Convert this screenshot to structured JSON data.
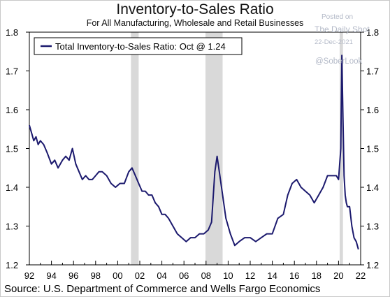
{
  "title": "Inventory-to-Sales Ratio",
  "subtitle": "For All Manufacturing, Wholesale and Retail Businesses",
  "watermark": {
    "line1": "Posted on",
    "line2": "The Daily Shot",
    "line3": "22-Dec-2021",
    "line4": "@SoberLook"
  },
  "source": "Source: U.S. Department of Commerce and Wells Fargo Economics",
  "colors": {
    "line": "#1c1a6e",
    "recession": "#d9d9d9",
    "axis": "#000000"
  },
  "chart_data": {
    "type": "line",
    "title": "Inventory-to-Sales Ratio",
    "subtitle": "For All Manufacturing, Wholesale and Retail Businesses",
    "xlabel": "",
    "ylabel": "",
    "xlim": [
      1992,
      2022
    ],
    "ylim": [
      1.2,
      1.8
    ],
    "x_ticks": [
      1992,
      1994,
      1996,
      1998,
      2000,
      2002,
      2004,
      2006,
      2008,
      2010,
      2012,
      2014,
      2016,
      2018,
      2020,
      2022
    ],
    "x_tick_labels": [
      "92",
      "94",
      "96",
      "98",
      "00",
      "02",
      "04",
      "06",
      "08",
      "10",
      "12",
      "14",
      "16",
      "18",
      "20",
      "22"
    ],
    "y_ticks": [
      1.2,
      1.3,
      1.4,
      1.5,
      1.6,
      1.7,
      1.8
    ],
    "y_tick_labels": [
      "1.2",
      "1.3",
      "1.4",
      "1.5",
      "1.6",
      "1.7",
      "1.8"
    ],
    "grid": false,
    "legend_position": "top-left",
    "recessions": [
      [
        2001.2,
        2001.9
      ],
      [
        2007.95,
        2009.5
      ],
      [
        2020.1,
        2020.4
      ]
    ],
    "series": [
      {
        "name": "Total Inventory-to-Sales Ratio: Oct @ 1.24",
        "x": [
          1992.0,
          1992.2,
          1992.4,
          1992.6,
          1992.8,
          1993.0,
          1993.3,
          1993.6,
          1994.0,
          1994.3,
          1994.6,
          1995.0,
          1995.3,
          1995.6,
          1995.9,
          1996.2,
          1996.5,
          1996.8,
          1997.1,
          1997.4,
          1997.7,
          1998.0,
          1998.3,
          1998.6,
          1999.0,
          1999.4,
          1999.8,
          2000.2,
          2000.6,
          2001.0,
          2001.3,
          2001.6,
          2001.9,
          2002.2,
          2002.5,
          2002.8,
          2003.1,
          2003.4,
          2003.7,
          2004.0,
          2004.3,
          2004.6,
          2005.0,
          2005.4,
          2005.8,
          2006.2,
          2006.6,
          2007.0,
          2007.4,
          2007.8,
          2008.2,
          2008.5,
          2008.8,
          2009.0,
          2009.2,
          2009.5,
          2009.8,
          2010.2,
          2010.6,
          2011.0,
          2011.5,
          2012.0,
          2012.5,
          2013.0,
          2013.5,
          2014.0,
          2014.5,
          2015.0,
          2015.4,
          2015.8,
          2016.2,
          2016.6,
          2017.0,
          2017.4,
          2017.8,
          2018.2,
          2018.6,
          2019.0,
          2019.4,
          2019.8,
          2020.0,
          2020.2,
          2020.3,
          2020.4,
          2020.5,
          2020.6,
          2020.7,
          2020.8,
          2020.9,
          2021.0,
          2021.2,
          2021.4,
          2021.6,
          2021.8
        ],
        "values": [
          1.56,
          1.54,
          1.52,
          1.53,
          1.51,
          1.52,
          1.51,
          1.49,
          1.46,
          1.47,
          1.45,
          1.47,
          1.48,
          1.47,
          1.5,
          1.46,
          1.44,
          1.42,
          1.43,
          1.42,
          1.42,
          1.43,
          1.44,
          1.44,
          1.43,
          1.41,
          1.4,
          1.41,
          1.41,
          1.44,
          1.45,
          1.43,
          1.41,
          1.39,
          1.39,
          1.38,
          1.38,
          1.36,
          1.35,
          1.33,
          1.33,
          1.32,
          1.3,
          1.28,
          1.27,
          1.26,
          1.27,
          1.27,
          1.28,
          1.28,
          1.29,
          1.31,
          1.44,
          1.48,
          1.44,
          1.38,
          1.32,
          1.28,
          1.25,
          1.26,
          1.27,
          1.27,
          1.26,
          1.27,
          1.28,
          1.28,
          1.32,
          1.33,
          1.38,
          1.41,
          1.42,
          1.4,
          1.39,
          1.38,
          1.36,
          1.38,
          1.4,
          1.43,
          1.43,
          1.43,
          1.42,
          1.5,
          1.74,
          1.58,
          1.43,
          1.38,
          1.36,
          1.35,
          1.35,
          1.35,
          1.3,
          1.27,
          1.26,
          1.24
        ]
      }
    ]
  }
}
